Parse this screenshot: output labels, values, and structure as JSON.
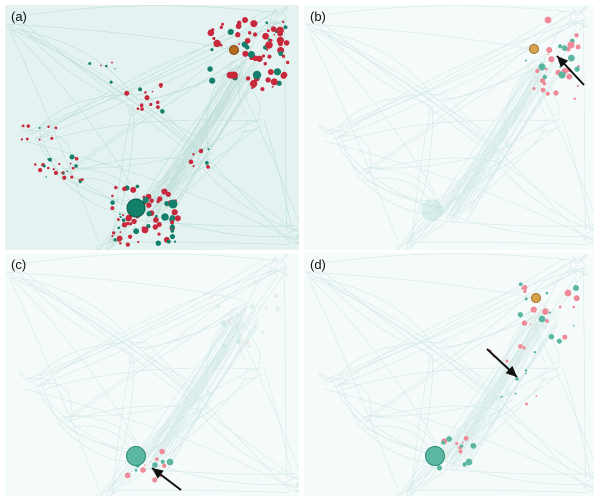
{
  "panels": [
    {
      "id": "a",
      "label": "(a)"
    },
    {
      "id": "b",
      "label": "(b)"
    },
    {
      "id": "c",
      "label": "(c)"
    },
    {
      "id": "d",
      "label": "(d)"
    }
  ],
  "colors": {
    "background_a": "#e4f3f1",
    "background_faded": "#f4fbfa",
    "network_line": "#bcdcd7",
    "red_node": "#c8283c",
    "teal_node": "#12806b",
    "orange_node": "#b86a1e",
    "pink_node_faded": "#f08a98",
    "teal_node_faded": "#5bb6a2",
    "orange_node_faded": "#d6a24e",
    "arrow": "#111111"
  }
}
